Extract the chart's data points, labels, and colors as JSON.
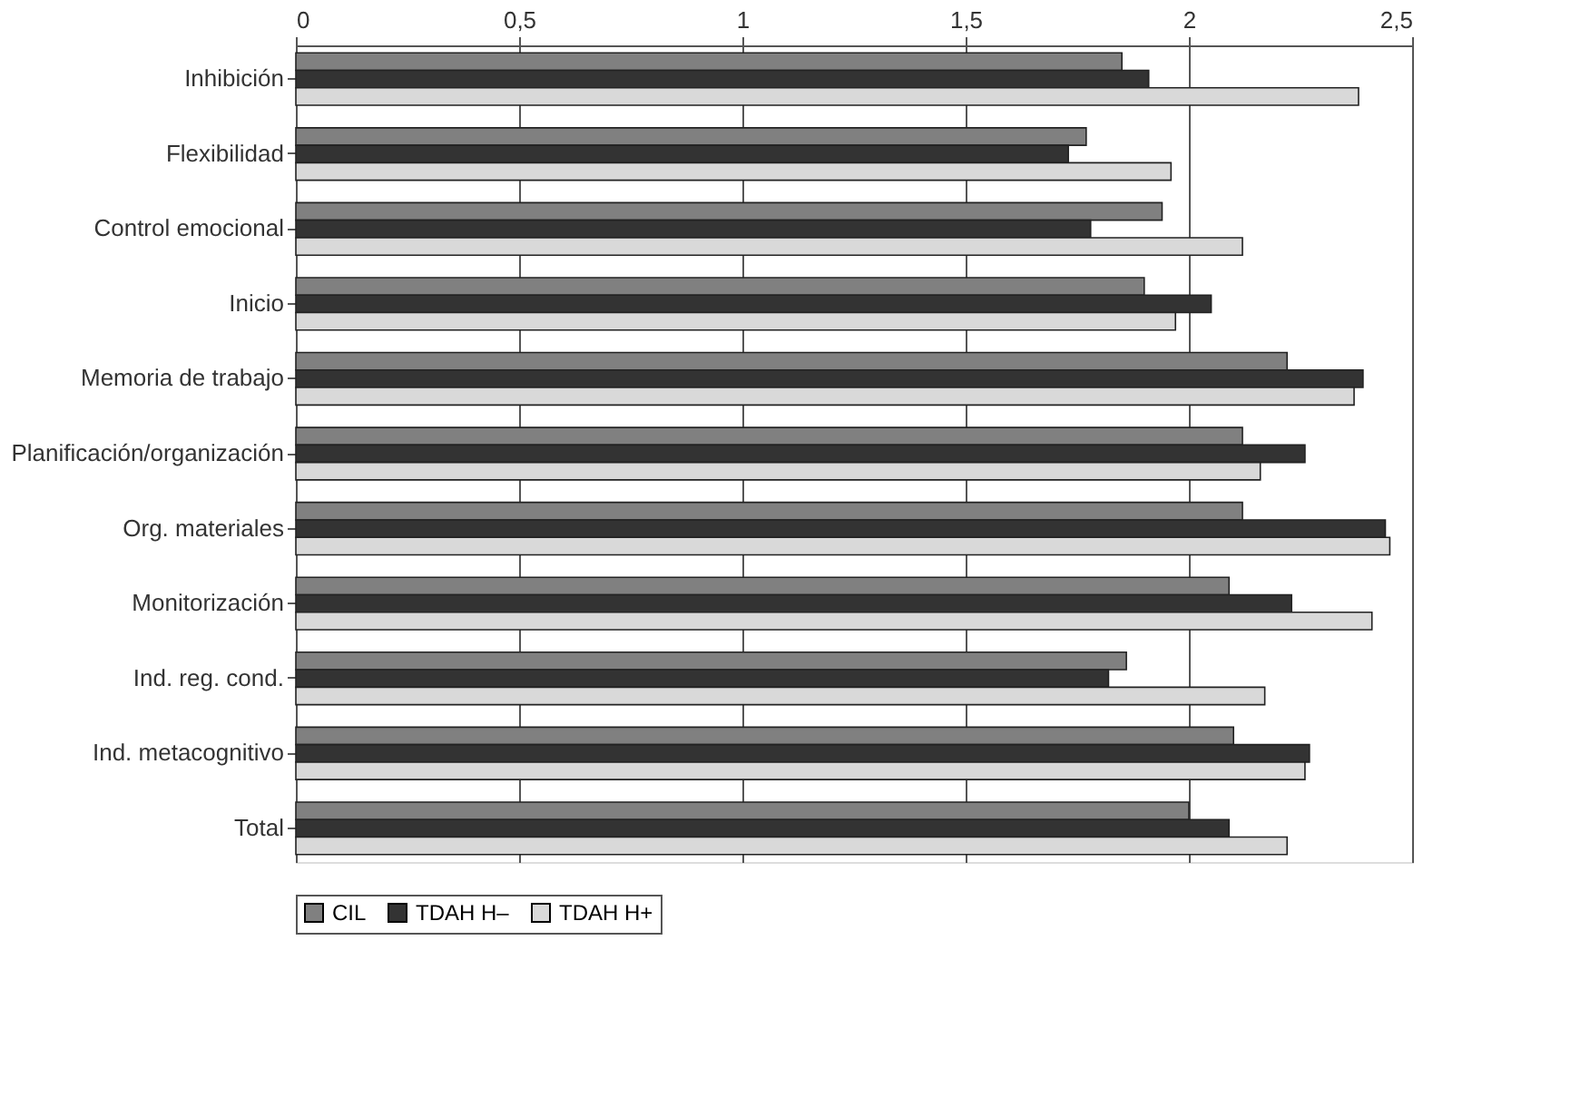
{
  "chart_data": {
    "type": "bar",
    "orientation": "horizontal",
    "categories": [
      "Inhibición",
      "Flexibilidad",
      "Control emocional",
      "Inicio",
      "Memoria de trabajo",
      "Planificación/organización",
      "Org. materiales",
      "Monitorización",
      "Ind. reg. cond.",
      "Ind. metacognitivo",
      "Total"
    ],
    "series": [
      {
        "name": "CIL",
        "color": "#808080",
        "values": [
          1.85,
          1.77,
          1.94,
          1.9,
          2.22,
          2.12,
          2.12,
          2.09,
          1.86,
          2.1,
          2.0
        ]
      },
      {
        "name": "TDAH H–",
        "color": "#333333",
        "values": [
          1.91,
          1.73,
          1.78,
          2.05,
          2.39,
          2.26,
          2.44,
          2.23,
          1.82,
          2.27,
          2.09
        ]
      },
      {
        "name": "TDAH H+",
        "color": "#d9d9d9",
        "values": [
          2.38,
          1.96,
          2.12,
          1.97,
          2.37,
          2.16,
          2.45,
          2.41,
          2.17,
          2.26,
          2.22
        ]
      }
    ],
    "xlim": [
      0,
      2.5
    ],
    "xticks": [
      0,
      {
        "value": 0.5,
        "label": "0,5"
      },
      1,
      {
        "value": 1.5,
        "label": "1,5"
      },
      2,
      {
        "value": 2.5,
        "label": "2,5"
      }
    ],
    "grid": "x",
    "legend": "bottom"
  }
}
